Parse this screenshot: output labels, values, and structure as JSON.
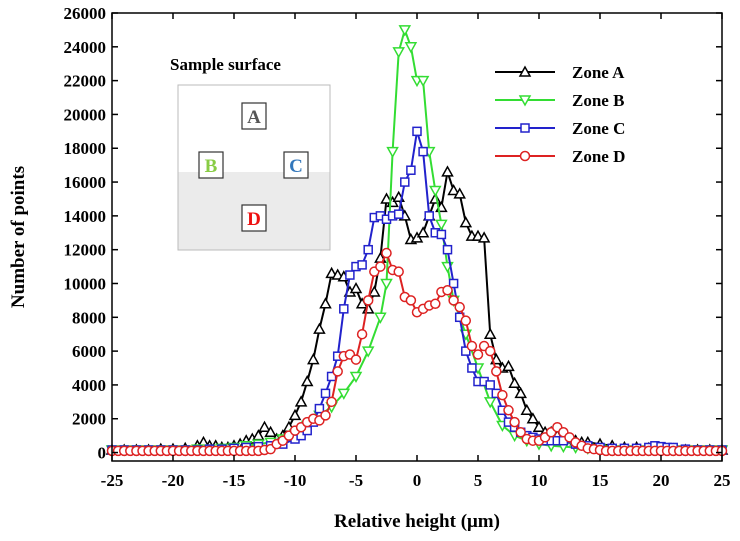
{
  "chart_data": {
    "type": "line",
    "title": "",
    "xlabel": "Relative height (μm)",
    "ylabel": "Number of points",
    "xlim": [
      -25,
      25
    ],
    "ylim": [
      -500,
      26000
    ],
    "xticks": [
      -25,
      -20,
      -15,
      -10,
      -5,
      0,
      5,
      10,
      15,
      20,
      25
    ],
    "yticks": [
      0,
      2000,
      4000,
      6000,
      8000,
      10000,
      12000,
      14000,
      16000,
      18000,
      20000,
      22000,
      24000,
      26000
    ],
    "legend": "top-right",
    "series": [
      {
        "name": "Zone A",
        "color": "#000000",
        "marker": "triangle-up",
        "points": [
          [
            -25,
            150
          ],
          [
            -24,
            150
          ],
          [
            -23,
            150
          ],
          [
            -22,
            150
          ],
          [
            -21,
            200
          ],
          [
            -20,
            200
          ],
          [
            -19,
            250
          ],
          [
            -18,
            400
          ],
          [
            -17.5,
            600
          ],
          [
            -17,
            400
          ],
          [
            -16.5,
            400
          ],
          [
            -16,
            300
          ],
          [
            -15.5,
            300
          ],
          [
            -15,
            400
          ],
          [
            -14.5,
            500
          ],
          [
            -14,
            700
          ],
          [
            -13.5,
            800
          ],
          [
            -13,
            1000
          ],
          [
            -12.5,
            1500
          ],
          [
            -12,
            1200
          ],
          [
            -11.5,
            800
          ],
          [
            -11,
            1000
          ],
          [
            -10.5,
            1500
          ],
          [
            -10,
            2200
          ],
          [
            -9.5,
            3000
          ],
          [
            -9,
            4200
          ],
          [
            -8.5,
            5500
          ],
          [
            -8,
            7300
          ],
          [
            -7.5,
            8800
          ],
          [
            -7,
            10600
          ],
          [
            -6.5,
            10500
          ],
          [
            -6,
            10400
          ],
          [
            -5.5,
            9500
          ],
          [
            -5,
            9700
          ],
          [
            -4.5,
            8800
          ],
          [
            -4,
            8500
          ],
          [
            -3.5,
            9500
          ],
          [
            -3,
            11500
          ],
          [
            -2.5,
            15000
          ],
          [
            -2,
            14800
          ],
          [
            -1.5,
            15100
          ],
          [
            -1,
            14000
          ],
          [
            -0.5,
            12600
          ],
          [
            0,
            12700
          ],
          [
            0.5,
            13000
          ],
          [
            1,
            14000
          ],
          [
            1.5,
            15000
          ],
          [
            2,
            14500
          ],
          [
            2.5,
            16600
          ],
          [
            3,
            15500
          ],
          [
            3.5,
            15300
          ],
          [
            4,
            13600
          ],
          [
            4.5,
            12800
          ],
          [
            5,
            12800
          ],
          [
            5.5,
            12700
          ],
          [
            6,
            7000
          ],
          [
            6.5,
            5500
          ],
          [
            7,
            5000
          ],
          [
            7.5,
            5100
          ],
          [
            8,
            4100
          ],
          [
            8.5,
            3500
          ],
          [
            9,
            2500
          ],
          [
            9.5,
            2000
          ],
          [
            10,
            1500
          ],
          [
            10.5,
            1200
          ],
          [
            11,
            1200
          ],
          [
            11.5,
            1000
          ],
          [
            12,
            900
          ],
          [
            12.5,
            800
          ],
          [
            13,
            700
          ],
          [
            13.5,
            600
          ],
          [
            14,
            600
          ],
          [
            15,
            500
          ],
          [
            16,
            400
          ],
          [
            17,
            300
          ],
          [
            18,
            300
          ],
          [
            19,
            250
          ],
          [
            20,
            200
          ],
          [
            21,
            200
          ],
          [
            22,
            150
          ],
          [
            23,
            150
          ],
          [
            24,
            150
          ],
          [
            25,
            150
          ]
        ]
      },
      {
        "name": "Zone B",
        "color": "#33dd33",
        "marker": "triangle-down",
        "points": [
          [
            -25,
            150
          ],
          [
            -24,
            150
          ],
          [
            -23,
            150
          ],
          [
            -22,
            150
          ],
          [
            -21,
            150
          ],
          [
            -20,
            150
          ],
          [
            -19,
            150
          ],
          [
            -18,
            200
          ],
          [
            -17,
            200
          ],
          [
            -16,
            250
          ],
          [
            -15,
            300
          ],
          [
            -14,
            400
          ],
          [
            -13,
            500
          ],
          [
            -12,
            600
          ],
          [
            -11,
            800
          ],
          [
            -10,
            1100
          ],
          [
            -9,
            1600
          ],
          [
            -8,
            2200
          ],
          [
            -7,
            2700
          ],
          [
            -6,
            3500
          ],
          [
            -5,
            4500
          ],
          [
            -4,
            6000
          ],
          [
            -3,
            8000
          ],
          [
            -2.5,
            10000
          ],
          [
            -2,
            17800
          ],
          [
            -1.5,
            23700
          ],
          [
            -1,
            25000
          ],
          [
            -0.5,
            24000
          ],
          [
            0,
            22000
          ],
          [
            0.5,
            22000
          ],
          [
            1,
            17800
          ],
          [
            1.5,
            15500
          ],
          [
            2,
            13500
          ],
          [
            2.5,
            11000
          ],
          [
            3,
            9000
          ],
          [
            4,
            7000
          ],
          [
            5,
            5000
          ],
          [
            6,
            3000
          ],
          [
            7,
            1600
          ],
          [
            8,
            1000
          ],
          [
            9,
            700
          ],
          [
            10,
            500
          ],
          [
            11,
            400
          ],
          [
            12,
            350
          ],
          [
            13,
            300
          ],
          [
            14,
            250
          ],
          [
            15,
            200
          ],
          [
            16,
            150
          ],
          [
            17,
            150
          ],
          [
            18,
            150
          ],
          [
            19,
            150
          ],
          [
            20,
            150
          ],
          [
            21,
            150
          ],
          [
            22,
            150
          ],
          [
            23,
            150
          ],
          [
            24,
            150
          ],
          [
            25,
            150
          ]
        ]
      },
      {
        "name": "Zone C",
        "color": "#2222cc",
        "marker": "square",
        "points": [
          [
            -25,
            150
          ],
          [
            -24,
            150
          ],
          [
            -23,
            150
          ],
          [
            -22,
            150
          ],
          [
            -21,
            150
          ],
          [
            -20,
            150
          ],
          [
            -19,
            150
          ],
          [
            -18,
            150
          ],
          [
            -17,
            200
          ],
          [
            -16,
            200
          ],
          [
            -15,
            250
          ],
          [
            -14,
            300
          ],
          [
            -13,
            350
          ],
          [
            -12,
            400
          ],
          [
            -11,
            500
          ],
          [
            -10,
            800
          ],
          [
            -9.5,
            1000
          ],
          [
            -9,
            1300
          ],
          [
            -8.5,
            1800
          ],
          [
            -8,
            2600
          ],
          [
            -7.5,
            3500
          ],
          [
            -7,
            4500
          ],
          [
            -6.5,
            5700
          ],
          [
            -6,
            8500
          ],
          [
            -5.5,
            10500
          ],
          [
            -5,
            11000
          ],
          [
            -4.5,
            11100
          ],
          [
            -4,
            12000
          ],
          [
            -3.5,
            13900
          ],
          [
            -3,
            14000
          ],
          [
            -2.5,
            13800
          ],
          [
            -2,
            14000
          ],
          [
            -1.5,
            14100
          ],
          [
            -1,
            16000
          ],
          [
            -0.5,
            16700
          ],
          [
            0,
            19000
          ],
          [
            0.5,
            17800
          ],
          [
            1,
            14000
          ],
          [
            1.5,
            13000
          ],
          [
            2,
            12900
          ],
          [
            2.5,
            12000
          ],
          [
            3,
            10000
          ],
          [
            3.5,
            8000
          ],
          [
            4,
            6000
          ],
          [
            4.5,
            5000
          ],
          [
            5,
            4200
          ],
          [
            5.5,
            4200
          ],
          [
            6,
            4000
          ],
          [
            6.5,
            3500
          ],
          [
            7,
            2500
          ],
          [
            7.5,
            1800
          ],
          [
            8,
            1500
          ],
          [
            8.5,
            1200
          ],
          [
            9,
            1000
          ],
          [
            9.5,
            900
          ],
          [
            10,
            800
          ],
          [
            10.5,
            700
          ],
          [
            11,
            700
          ],
          [
            11.5,
            700
          ],
          [
            12,
            700
          ],
          [
            13,
            500
          ],
          [
            14,
            400
          ],
          [
            15,
            300
          ],
          [
            16,
            250
          ],
          [
            17,
            250
          ],
          [
            18,
            250
          ],
          [
            19,
            300
          ],
          [
            19.5,
            400
          ],
          [
            20,
            350
          ],
          [
            20.5,
            300
          ],
          [
            21,
            300
          ],
          [
            22,
            200
          ],
          [
            23,
            150
          ],
          [
            24,
            150
          ],
          [
            25,
            150
          ]
        ]
      },
      {
        "name": "Zone D",
        "color": "#dd2222",
        "marker": "circle",
        "points": [
          [
            -25,
            100
          ],
          [
            -24.5,
            100
          ],
          [
            -24,
            100
          ],
          [
            -23.5,
            100
          ],
          [
            -23,
            100
          ],
          [
            -22.5,
            100
          ],
          [
            -22,
            100
          ],
          [
            -21.5,
            100
          ],
          [
            -21,
            100
          ],
          [
            -20.5,
            100
          ],
          [
            -20,
            100
          ],
          [
            -19.5,
            100
          ],
          [
            -19,
            100
          ],
          [
            -18.5,
            100
          ],
          [
            -18,
            100
          ],
          [
            -17.5,
            100
          ],
          [
            -17,
            100
          ],
          [
            -16.5,
            100
          ],
          [
            -16,
            100
          ],
          [
            -15.5,
            100
          ],
          [
            -15,
            100
          ],
          [
            -14.5,
            100
          ],
          [
            -14,
            100
          ],
          [
            -13.5,
            100
          ],
          [
            -13,
            100
          ],
          [
            -12.5,
            150
          ],
          [
            -12,
            200
          ],
          [
            -11.5,
            500
          ],
          [
            -11,
            700
          ],
          [
            -10.5,
            1000
          ],
          [
            -10,
            1300
          ],
          [
            -9.5,
            1500
          ],
          [
            -9,
            1800
          ],
          [
            -8.5,
            2000
          ],
          [
            -8,
            1900
          ],
          [
            -7.5,
            2200
          ],
          [
            -7,
            3000
          ],
          [
            -6.5,
            4800
          ],
          [
            -6,
            5700
          ],
          [
            -5.5,
            5800
          ],
          [
            -5,
            5500
          ],
          [
            -4.5,
            7000
          ],
          [
            -4,
            9000
          ],
          [
            -3.5,
            10700
          ],
          [
            -3,
            11000
          ],
          [
            -2.5,
            11800
          ],
          [
            -2,
            10800
          ],
          [
            -1.5,
            10700
          ],
          [
            -1,
            9200
          ],
          [
            -0.5,
            9000
          ],
          [
            0,
            8300
          ],
          [
            0.5,
            8500
          ],
          [
            1,
            8700
          ],
          [
            1.5,
            8800
          ],
          [
            2,
            9500
          ],
          [
            2.5,
            9600
          ],
          [
            3,
            9000
          ],
          [
            3.5,
            8600
          ],
          [
            4,
            7800
          ],
          [
            4.5,
            6300
          ],
          [
            5,
            5800
          ],
          [
            5.5,
            6300
          ],
          [
            6,
            6000
          ],
          [
            6.5,
            4800
          ],
          [
            7,
            3400
          ],
          [
            7.5,
            2500
          ],
          [
            8,
            1800
          ],
          [
            8.5,
            1200
          ],
          [
            9,
            800
          ],
          [
            9.5,
            700
          ],
          [
            10,
            700
          ],
          [
            10.5,
            900
          ],
          [
            11,
            1200
          ],
          [
            11.5,
            1500
          ],
          [
            12,
            1200
          ],
          [
            12.5,
            900
          ],
          [
            13,
            600
          ],
          [
            13.5,
            400
          ],
          [
            14,
            250
          ],
          [
            14.5,
            200
          ],
          [
            15,
            150
          ],
          [
            15.5,
            100
          ],
          [
            16,
            100
          ],
          [
            16.5,
            100
          ],
          [
            17,
            100
          ],
          [
            17.5,
            100
          ],
          [
            18,
            100
          ],
          [
            18.5,
            100
          ],
          [
            19,
            100
          ],
          [
            19.5,
            100
          ],
          [
            20,
            100
          ],
          [
            20.5,
            100
          ],
          [
            21,
            100
          ],
          [
            21.5,
            100
          ],
          [
            22,
            100
          ],
          [
            22.5,
            100
          ],
          [
            23,
            100
          ],
          [
            23.5,
            100
          ],
          [
            24,
            100
          ],
          [
            24.5,
            100
          ],
          [
            25,
            100
          ]
        ]
      }
    ],
    "inset": {
      "title": "Sample surface",
      "zones": [
        {
          "label": "A",
          "color": "#555555"
        },
        {
          "label": "B",
          "color": "#88cc44"
        },
        {
          "label": "C",
          "color": "#3377bb"
        },
        {
          "label": "D",
          "color": "#ee1111"
        }
      ]
    }
  }
}
